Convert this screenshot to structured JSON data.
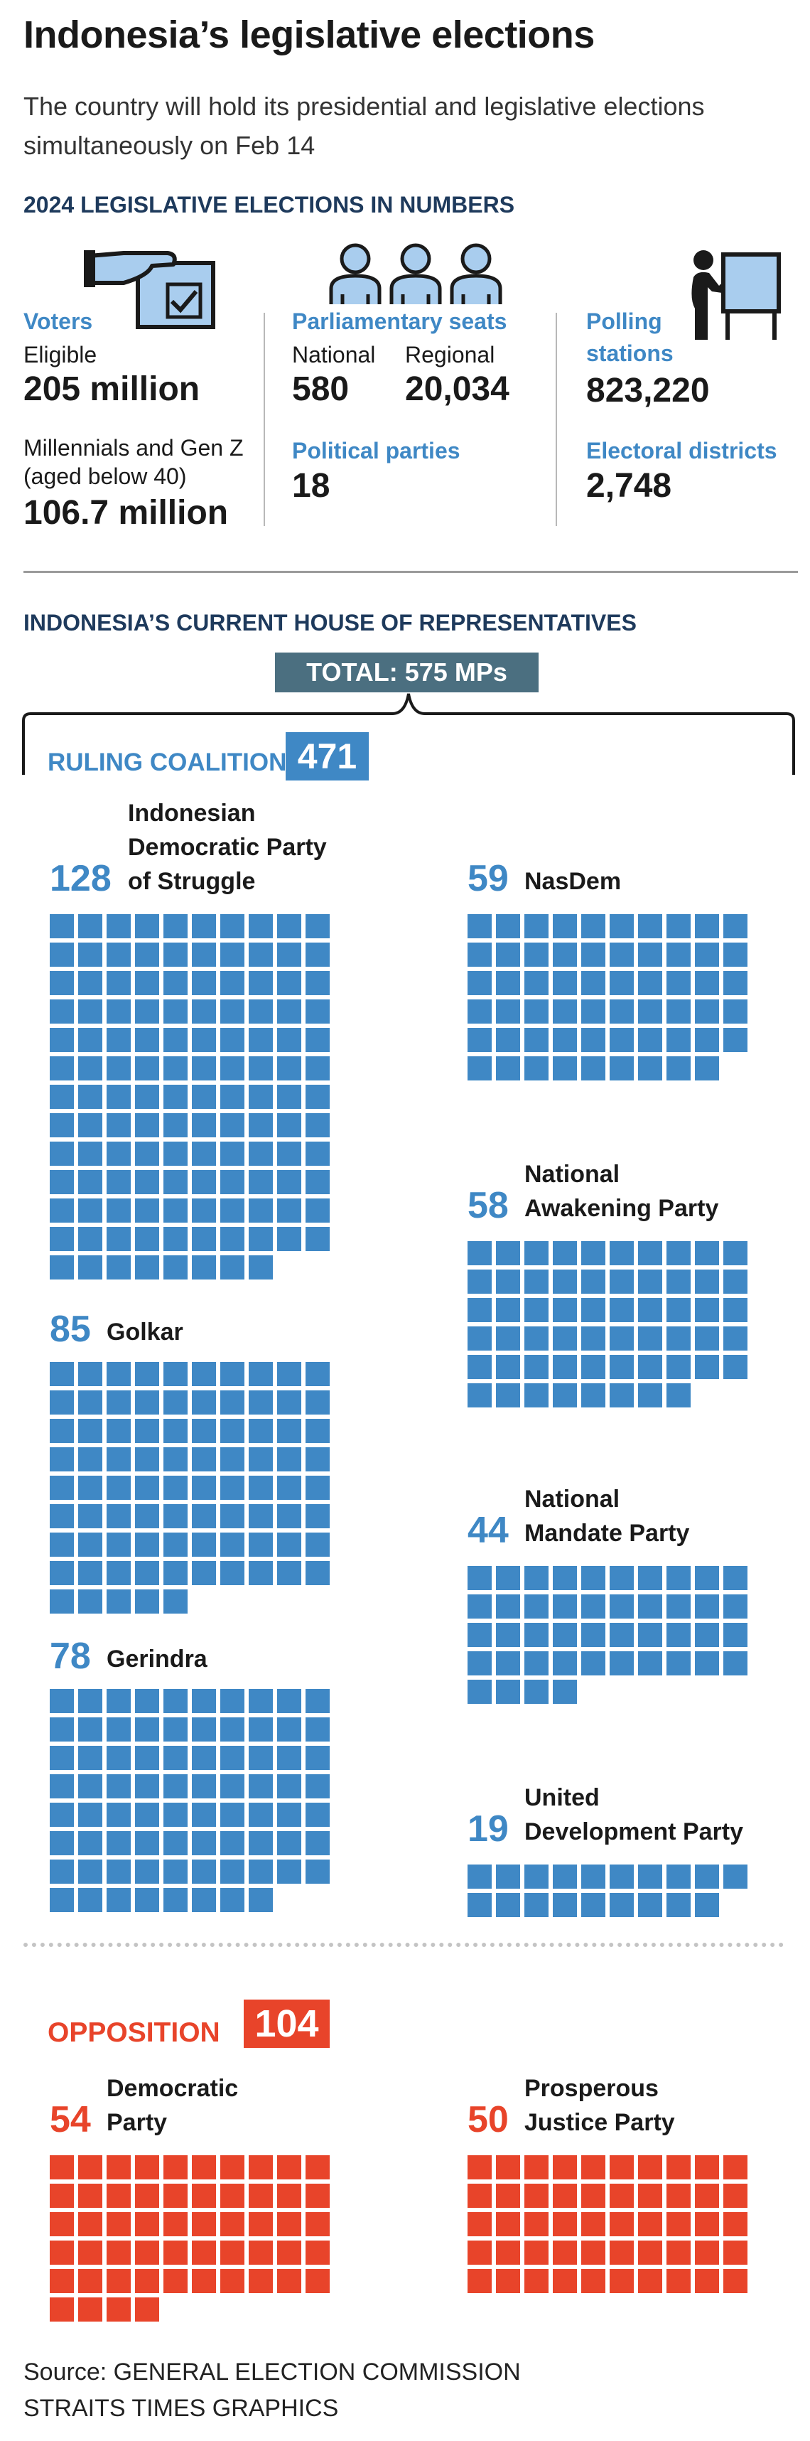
{
  "header": {
    "title": "Indonesia’s legislative elections",
    "subtitle": "The country will hold its presidential and legislative elections simultaneously on Feb 14"
  },
  "numbers": {
    "heading": "2024 LEGISLATIVE ELECTIONS IN NUMBERS",
    "voters": {
      "heading": "Voters",
      "eligible_label": "Eligible",
      "eligible_value": "205 million",
      "young_label_1": "Millennials and Gen Z",
      "young_label_2": "(aged below 40)",
      "young_value": "106.7 million"
    },
    "seats": {
      "heading": "Parliamentary seats",
      "national_label": "National",
      "national_value": "580",
      "regional_label": "Regional",
      "regional_value": "20,034",
      "parties_heading": "Political parties",
      "parties_value": "18"
    },
    "stations": {
      "heading_1": "Polling",
      "heading_2": "stations",
      "stations_value": "823,220",
      "districts_heading": "Electoral districts",
      "districts_value": "2,748"
    },
    "icons": [
      "ballot-box-icon",
      "people-icon",
      "voting-booth-icon"
    ]
  },
  "house": {
    "heading": "INDONESIA’S CURRENT HOUSE OF REPRESENTATIVES",
    "total_label": "TOTAL: 575 MPs",
    "ruling_label": "RULING COALITION",
    "ruling_total": "471",
    "opposition_label": "OPPOSITION",
    "opposition_total": "104"
  },
  "colors": {
    "coalition": "#3f88c5",
    "opposition": "#e8442a",
    "total_box": "#4b6f80",
    "section_heading": "#1e3a5c"
  },
  "chart_data": {
    "type": "waffle",
    "title": "INDONESIA’S CURRENT HOUSE OF REPRESENTATIVES",
    "total": 575,
    "unit": "MPs",
    "series": [
      {
        "group": "Ruling coalition",
        "name": "Indonesian Democratic Party of Struggle",
        "name_lines": [
          "Indonesian",
          "Democratic Party",
          "of Struggle"
        ],
        "value": 128,
        "label": "128"
      },
      {
        "group": "Ruling coalition",
        "name": "Golkar",
        "name_lines": [
          "Golkar"
        ],
        "value": 85,
        "label": "85"
      },
      {
        "group": "Ruling coalition",
        "name": "Gerindra",
        "name_lines": [
          "Gerindra"
        ],
        "value": 78,
        "label": "78"
      },
      {
        "group": "Ruling coalition",
        "name": "NasDem",
        "name_lines": [
          "NasDem"
        ],
        "value": 59,
        "label": "59"
      },
      {
        "group": "Ruling coalition",
        "name": "National Awakening Party",
        "name_lines": [
          "National",
          "Awakening Party"
        ],
        "value": 58,
        "label": "58"
      },
      {
        "group": "Ruling coalition",
        "name": "National Mandate Party",
        "name_lines": [
          "National",
          "Mandate Party"
        ],
        "value": 44,
        "label": "44"
      },
      {
        "group": "Ruling coalition",
        "name": "United Development Party",
        "name_lines": [
          "United",
          "Development Party"
        ],
        "value": 19,
        "label": "19"
      },
      {
        "group": "Opposition",
        "name": "Democratic Party",
        "name_lines": [
          "Democratic",
          "Party"
        ],
        "value": 54,
        "label": "54"
      },
      {
        "group": "Opposition",
        "name": "Prosperous Justice Party",
        "name_lines": [
          "Prosperous",
          "Justice Party"
        ],
        "value": 50,
        "label": "50"
      }
    ]
  },
  "footer": {
    "source_line_1": "Source: GENERAL ELECTION COMMISSION",
    "source_line_2": "STRAITS TIMES GRAPHICS"
  }
}
